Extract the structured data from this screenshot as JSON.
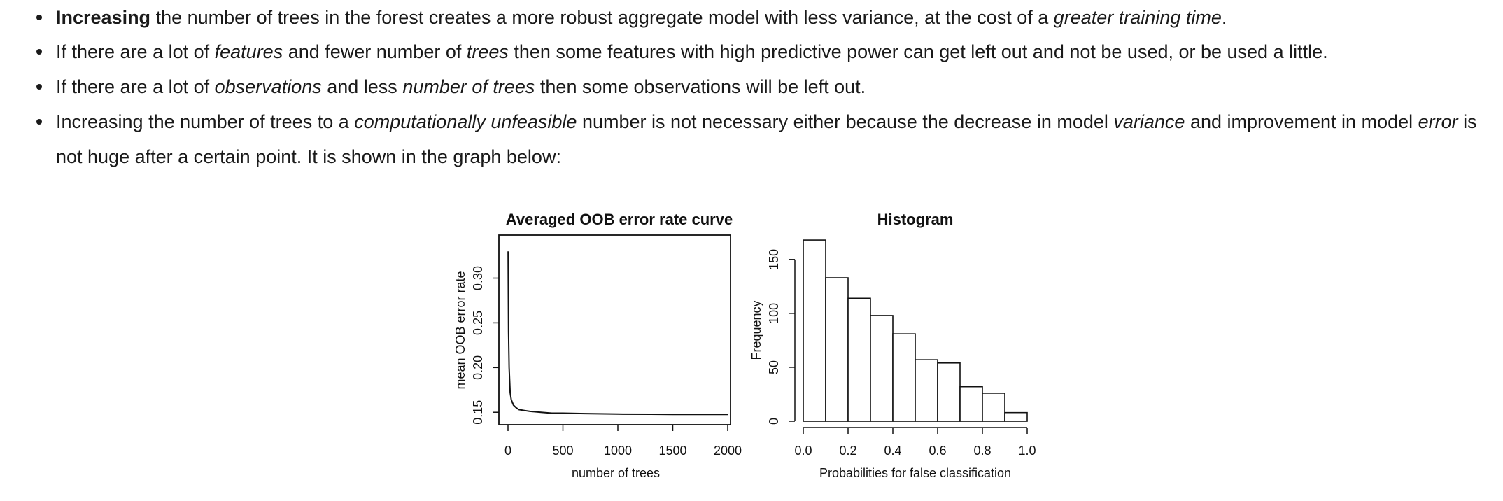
{
  "bullets": [
    {
      "parts": [
        {
          "t": "Increasing",
          "s": "b"
        },
        {
          "t": " the number of trees in the forest creates a more robust aggregate model with less variance, at the cost of a "
        },
        {
          "t": "greater training time",
          "s": "i"
        },
        {
          "t": "."
        }
      ]
    },
    {
      "parts": [
        {
          "t": "If there are a lot of "
        },
        {
          "t": "features",
          "s": "i"
        },
        {
          "t": " and fewer number of "
        },
        {
          "t": "trees",
          "s": "i"
        },
        {
          "t": " then some features with high predictive power can get left out and not be used, or be used a little."
        }
      ]
    },
    {
      "parts": [
        {
          "t": "If there are a lot of "
        },
        {
          "t": "observations",
          "s": "i"
        },
        {
          "t": " and less "
        },
        {
          "t": "number of trees",
          "s": "i"
        },
        {
          "t": " then some observations will be left out."
        }
      ]
    },
    {
      "parts": [
        {
          "t": "Increasing the number of trees to a "
        },
        {
          "t": "computationally unfeasible",
          "s": "i"
        },
        {
          "t": " number is not necessary either because the decrease in model "
        },
        {
          "t": "variance",
          "s": "i"
        },
        {
          "t": " and improvement in model "
        },
        {
          "t": "error",
          "s": "i"
        },
        {
          "t": " is not huge after a certain point. It is shown in the graph below:"
        }
      ]
    }
  ],
  "chart_data": [
    {
      "type": "line",
      "title": "Averaged OOB error rate curve",
      "xlabel": "number of trees",
      "ylabel": "mean OOB error rate",
      "x_ticks": [
        "0",
        "500",
        "1000",
        "1500",
        "2000"
      ],
      "y_ticks": [
        "0.15",
        "0.20",
        "0.25",
        "0.30"
      ],
      "xlim": [
        0,
        2000
      ],
      "ylim": [
        0.14,
        0.345
      ],
      "x": [
        1,
        5,
        10,
        20,
        30,
        50,
        75,
        100,
        150,
        200,
        300,
        400,
        500,
        700,
        1000,
        1300,
        1500,
        1800,
        2000
      ],
      "y": [
        0.33,
        0.24,
        0.2,
        0.172,
        0.164,
        0.158,
        0.155,
        0.153,
        0.152,
        0.151,
        0.15,
        0.149,
        0.149,
        0.1485,
        0.148,
        0.1478,
        0.1477,
        0.1476,
        0.1476
      ]
    },
    {
      "type": "bar",
      "title": "Histogram",
      "xlabel": "Probabilities for false classification",
      "ylabel": "Frequency",
      "x_ticks": [
        "0.0",
        "0.2",
        "0.4",
        "0.6",
        "0.8",
        "1.0"
      ],
      "y_ticks": [
        "0",
        "50",
        "100",
        "150"
      ],
      "xlim": [
        0.0,
        1.0
      ],
      "ylim": [
        0,
        170
      ],
      "bin_edges": [
        0.0,
        0.1,
        0.2,
        0.3,
        0.4,
        0.5,
        0.6,
        0.7,
        0.8,
        0.9,
        1.0
      ],
      "values": [
        168,
        133,
        114,
        98,
        81,
        57,
        54,
        32,
        26,
        8
      ]
    }
  ]
}
